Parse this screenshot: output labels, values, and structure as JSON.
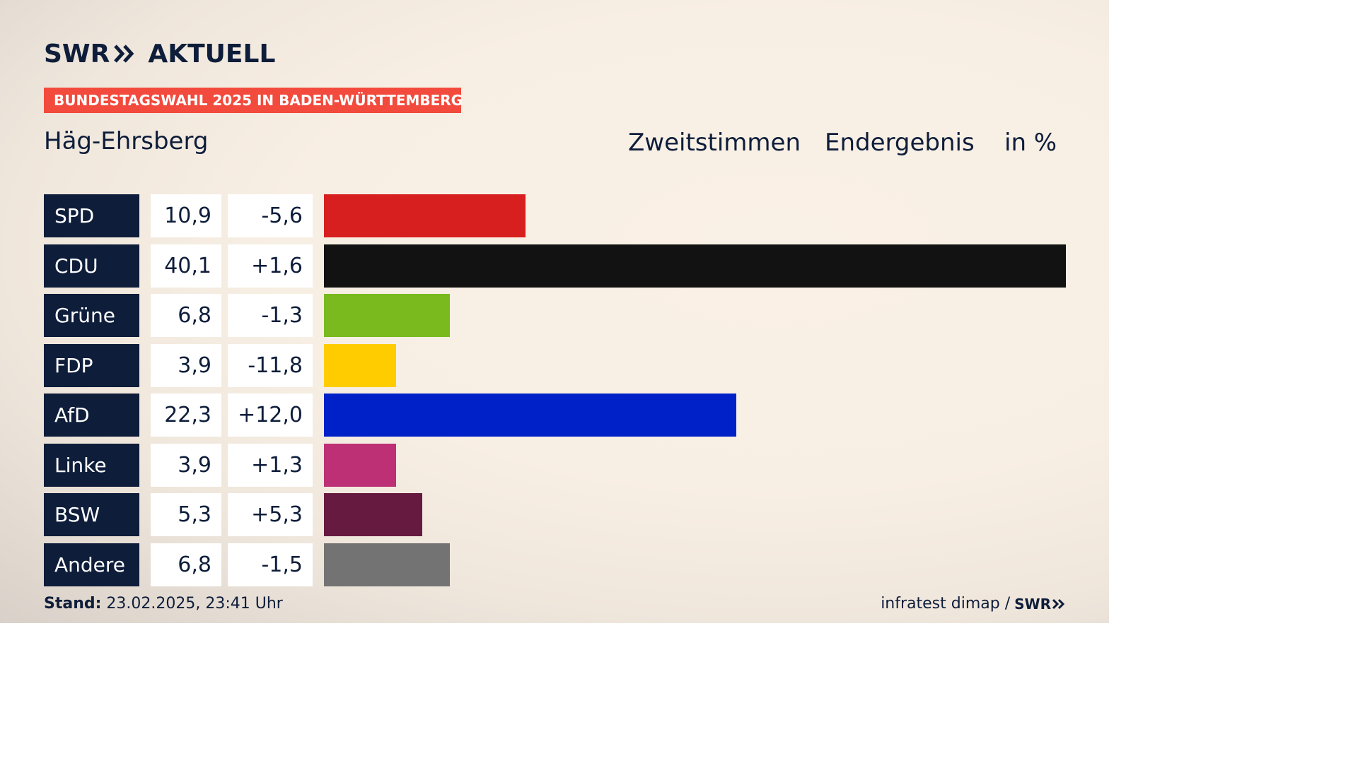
{
  "brand": {
    "swr": "SWR",
    "aktuell": "AKTUELL"
  },
  "banner": "BUNDESTAGSWAHL 2025 IN BADEN-WÜRTTEMBERG",
  "region": "Häg-Ehrsberg",
  "headers": {
    "vote_type": "Zweitstimmen",
    "result_type": "Endergebnis",
    "unit": "in %"
  },
  "chart_data": {
    "type": "bar",
    "orientation": "horizontal",
    "categories": [
      "SPD",
      "CDU",
      "Grüne",
      "FDP",
      "AfD",
      "Linke",
      "BSW",
      "Andere"
    ],
    "values": [
      10.9,
      40.1,
      6.8,
      3.9,
      22.3,
      3.9,
      5.3,
      6.8
    ],
    "value_labels": [
      "10,9",
      "40,1",
      "6,8",
      "3,9",
      "22,3",
      "3,9",
      "5,3",
      "6,8"
    ],
    "changes": [
      -5.6,
      1.6,
      -1.3,
      -11.8,
      12.0,
      1.3,
      5.3,
      -1.5
    ],
    "change_labels": [
      "-5,6",
      "+1,6",
      "-1,3",
      "-11,8",
      "+12,0",
      "+1,3",
      "+5,3",
      "-1,5"
    ],
    "colors": [
      "#d71f1f",
      "#121212",
      "#7aba1e",
      "#ffcc00",
      "#0021c8",
      "#bd3075",
      "#671a40",
      "#737373"
    ],
    "xlim": [
      0,
      40.1
    ]
  },
  "footer": {
    "stand_label": "Stand:",
    "stand_value": "23.02.2025, 23:41 Uhr",
    "source": "infratest dimap /",
    "source_brand": "SWR"
  }
}
